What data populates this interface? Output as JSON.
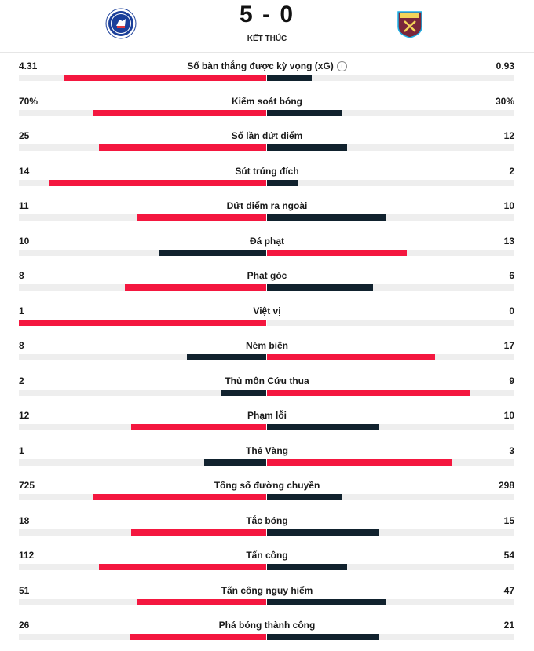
{
  "match": {
    "score": "5 - 0",
    "status": "KẾT THÚC",
    "home_crest": "chelsea-crest-icon",
    "away_crest": "west-ham-crest-icon"
  },
  "colors": {
    "home": "#f4173f",
    "away": "#11222e",
    "track": "#eeeeee"
  },
  "stats": [
    {
      "label": "Số bàn thắng được kỳ vọng (xG)",
      "home": "4.31",
      "away": "0.93",
      "home_share": 0.82,
      "away_share": 0.18,
      "info": true,
      "leader": "home"
    },
    {
      "label": "Kiểm soát bóng",
      "home": "70%",
      "away": "30%",
      "home_share": 0.7,
      "away_share": 0.3,
      "leader": "home"
    },
    {
      "label": "Số lần dứt điểm",
      "home": "25",
      "away": "12",
      "home_share": 0.675,
      "away_share": 0.325,
      "leader": "home"
    },
    {
      "label": "Sút trúng đích",
      "home": "14",
      "away": "2",
      "home_share": 0.875,
      "away_share": 0.125,
      "leader": "home"
    },
    {
      "label": "Dứt điểm ra ngoài",
      "home": "11",
      "away": "10",
      "home_share": 0.52,
      "away_share": 0.48,
      "leader": "home"
    },
    {
      "label": "Đá phạt",
      "home": "10",
      "away": "13",
      "home_share": 0.435,
      "away_share": 0.565,
      "leader": "away"
    },
    {
      "label": "Phạt góc",
      "home": "8",
      "away": "6",
      "home_share": 0.57,
      "away_share": 0.43,
      "leader": "home"
    },
    {
      "label": "Việt vị",
      "home": "1",
      "away": "0",
      "home_share": 1.0,
      "away_share": 0.0,
      "leader": "home"
    },
    {
      "label": "Ném biên",
      "home": "8",
      "away": "17",
      "home_share": 0.32,
      "away_share": 0.68,
      "leader": "away"
    },
    {
      "label": "Thủ môn Cứu thua",
      "home": "2",
      "away": "9",
      "home_share": 0.18,
      "away_share": 0.82,
      "leader": "away"
    },
    {
      "label": "Phạm lỗi",
      "home": "12",
      "away": "10",
      "home_share": 0.545,
      "away_share": 0.455,
      "leader": "home"
    },
    {
      "label": "Thẻ Vàng",
      "home": "1",
      "away": "3",
      "home_share": 0.25,
      "away_share": 0.75,
      "leader": "away"
    },
    {
      "label": "Tổng số đường chuyền",
      "home": "725",
      "away": "298",
      "home_share": 0.7,
      "away_share": 0.3,
      "leader": "home"
    },
    {
      "label": "Tắc bóng",
      "home": "18",
      "away": "15",
      "home_share": 0.545,
      "away_share": 0.455,
      "leader": "home"
    },
    {
      "label": "Tấn công",
      "home": "112",
      "away": "54",
      "home_share": 0.675,
      "away_share": 0.325,
      "leader": "home"
    },
    {
      "label": "Tấn công nguy hiểm",
      "home": "51",
      "away": "47",
      "home_share": 0.52,
      "away_share": 0.48,
      "leader": "home"
    },
    {
      "label": "Phá bóng thành công",
      "home": "26",
      "away": "21",
      "home_share": 0.55,
      "away_share": 0.45,
      "leader": "home"
    }
  ]
}
